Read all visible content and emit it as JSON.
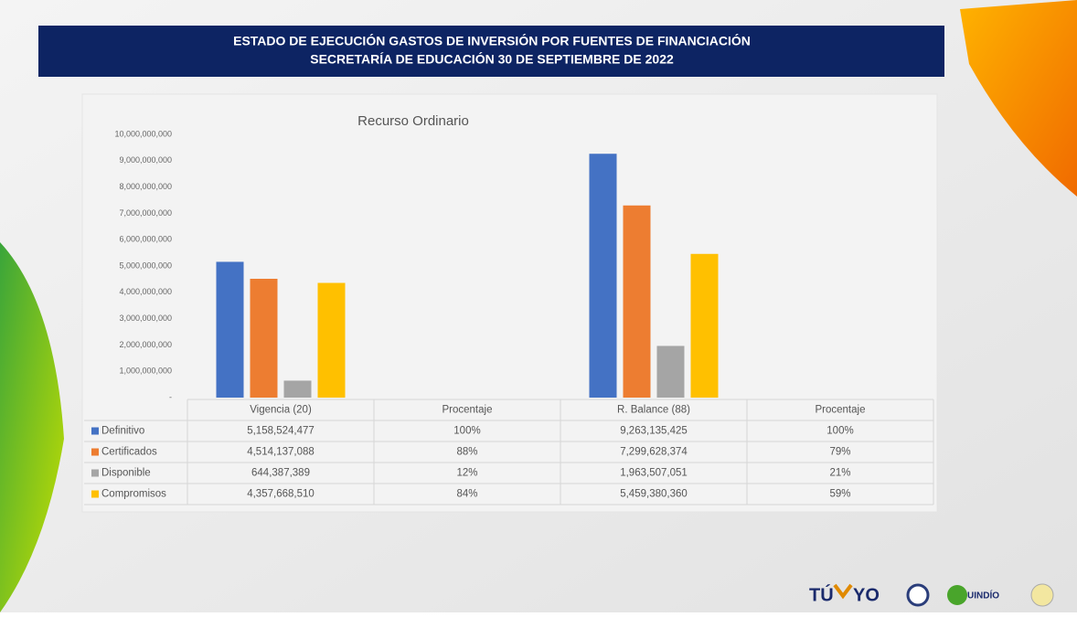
{
  "header": {
    "lines": [
      "ESTADO DE EJECUCIÓN GASTOS DE INVERSIÓN POR FUENTES DE FINANCIACIÓN",
      "SECRETARÍA DE EDUCACIÓN 30 DE SEPTIEMBRE DE 2022"
    ]
  },
  "chart_data": {
    "type": "bar",
    "title": "Recurso Ordinario",
    "categories": [
      "Vigencia (20)",
      "Procentaje",
      "R. Balance (88)",
      "Procentaje"
    ],
    "series": [
      {
        "name": "Definitivo",
        "color": "#4472c4",
        "values": [
          5158524477,
          1,
          9263135425,
          1
        ],
        "value_labels": [
          "5,158,524,477",
          "100%",
          "9,263,135,425",
          "100%"
        ]
      },
      {
        "name": "Certificados",
        "color": "#ed7d31",
        "values": [
          4514137088,
          0.88,
          7299628374,
          0.79
        ],
        "value_labels": [
          "4,514,137,088",
          "88%",
          "7,299,628,374",
          "79%"
        ]
      },
      {
        "name": "Disponible",
        "color": "#a5a5a5",
        "values": [
          644387389,
          0.12,
          1963507051,
          0.21
        ],
        "value_labels": [
          "644,387,389",
          "12%",
          "1,963,507,051",
          "21%"
        ]
      },
      {
        "name": "Compromisos",
        "color": "#ffc000",
        "values": [
          4357668510,
          0.84,
          5459380360,
          0.59
        ],
        "value_labels": [
          "4,357,668,510",
          "84%",
          "5,459,380,360",
          "59%"
        ]
      }
    ],
    "ylim": [
      0,
      10000000000
    ],
    "yticks": [
      {
        "value": 0,
        "label": "-"
      },
      {
        "value": 1000000000,
        "label": "1,000,000,000"
      },
      {
        "value": 2000000000,
        "label": "2,000,000,000"
      },
      {
        "value": 3000000000,
        "label": "3,000,000,000"
      },
      {
        "value": 4000000000,
        "label": "4,000,000,000"
      },
      {
        "value": 5000000000,
        "label": "5,000,000,000"
      },
      {
        "value": 6000000000,
        "label": "6,000,000,000"
      },
      {
        "value": 7000000000,
        "label": "7,000,000,000"
      },
      {
        "value": 8000000000,
        "label": "8,000,000,000"
      },
      {
        "value": 9000000000,
        "label": "9,000,000,000"
      },
      {
        "value": 10000000000,
        "label": "10,000,000,000"
      }
    ],
    "grid": false
  },
  "logos": [
    "TÚ",
    "YO",
    "UINDÍO"
  ]
}
